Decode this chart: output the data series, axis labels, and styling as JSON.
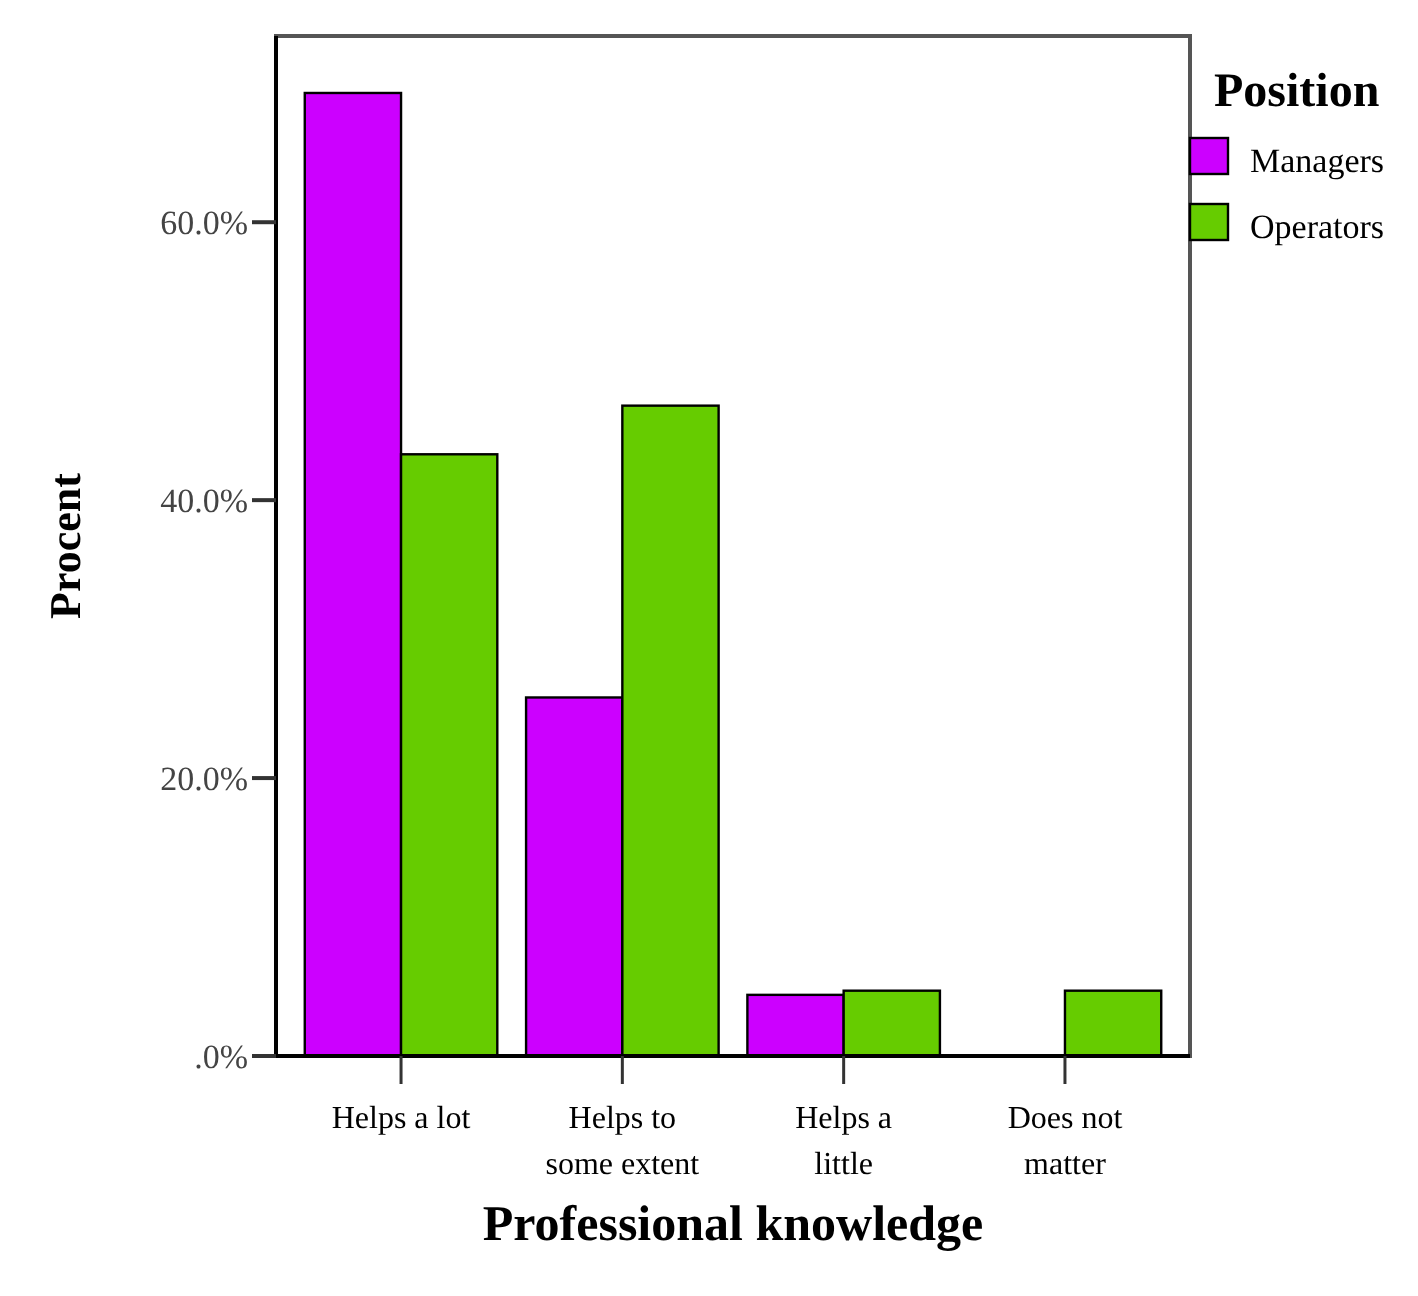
{
  "chart_data": {
    "type": "bar",
    "xlabel": "Professional knowledge",
    "ylabel": "Procent",
    "legend_title": "Position",
    "legend": "right",
    "categories": [
      "Helps a lot",
      "Helps to some extent",
      "Helps a little",
      "Does not matter"
    ],
    "series": [
      {
        "name": "Managers",
        "color": "#cc00ff",
        "values": [
          69.3,
          25.8,
          4.4,
          0
        ]
      },
      {
        "name": "Operators",
        "color": "#66cc00",
        "values": [
          43.3,
          46.8,
          4.7,
          4.7
        ]
      }
    ],
    "ylim": [
      0,
      73.4
    ],
    "yticks": [
      {
        "value": 0,
        "label": ".0%"
      },
      {
        "value": 20,
        "label": "20.0%"
      },
      {
        "value": 40,
        "label": "40.0%"
      },
      {
        "value": 60,
        "label": "60.0%"
      }
    ]
  }
}
